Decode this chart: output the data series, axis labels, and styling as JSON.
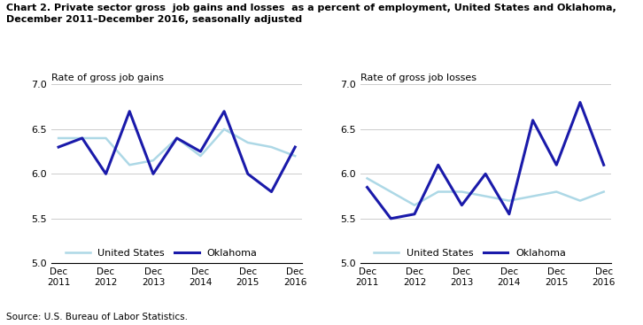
{
  "title_line1": "Chart 2. Private sector gross  job gains and losses  as a percent of employment, United States and Oklahoma,",
  "title_line2": "December 2011–December 2016, seasonally adjusted",
  "left_ylabel": "Rate of gross job gains",
  "right_ylabel": "Rate of gross job losses",
  "source": "Source: U.S. Bureau of Labor Statistics.",
  "x_tick_labels": [
    "Dec\n2011",
    "Dec\n2012",
    "Dec\n2013",
    "Dec\n2014",
    "Dec\n2015",
    "Dec\n2016"
  ],
  "ylim": [
    5.0,
    7.0
  ],
  "yticks": [
    5.0,
    5.5,
    6.0,
    6.5,
    7.0
  ],
  "us_color": "#add8e6",
  "ok_color": "#1a1aaa",
  "gains_us": [
    6.4,
    6.4,
    6.4,
    6.1,
    6.15,
    6.4,
    6.2,
    6.5,
    6.35,
    6.3,
    6.2
  ],
  "gains_ok": [
    6.3,
    6.4,
    6.0,
    6.7,
    6.0,
    6.4,
    6.25,
    6.7,
    6.0,
    5.8,
    6.3
  ],
  "losses_us": [
    5.95,
    5.8,
    5.65,
    5.8,
    5.8,
    5.75,
    5.7,
    5.75,
    5.8,
    5.7,
    5.8
  ],
  "losses_ok": [
    5.85,
    5.5,
    5.55,
    6.1,
    5.65,
    6.0,
    5.55,
    6.6,
    6.1,
    6.8,
    6.1
  ],
  "legend_us": "United States",
  "legend_ok": "Oklahoma",
  "us_lw": 1.8,
  "ok_lw": 2.2
}
